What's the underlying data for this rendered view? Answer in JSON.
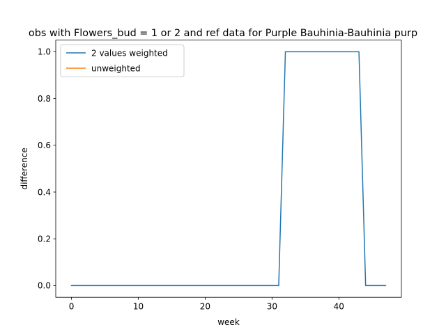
{
  "chart_data": {
    "type": "line",
    "title": "obs with Flowers_bud = 1 or 2 and ref data for Purple Bauhinia-Bauhinia purp",
    "xlabel": "week",
    "ylabel": "difference",
    "xlim": [
      -2.35,
      49.35
    ],
    "ylim": [
      -0.05,
      1.05
    ],
    "xticks": [
      0,
      10,
      20,
      30,
      40
    ],
    "yticks": [
      0.0,
      0.2,
      0.4,
      0.6,
      0.8,
      1.0
    ],
    "xtick_labels": [
      "0",
      "10",
      "20",
      "30",
      "40"
    ],
    "ytick_labels": [
      "0.0",
      "0.2",
      "0.4",
      "0.6",
      "0.8",
      "1.0"
    ],
    "grid": false,
    "legend_position": "top-left",
    "series": [
      {
        "name": "2 values weighted",
        "color": "#1f77b4",
        "x": [
          0,
          1,
          2,
          3,
          4,
          5,
          6,
          7,
          8,
          9,
          10,
          11,
          12,
          13,
          14,
          15,
          16,
          17,
          18,
          19,
          20,
          21,
          22,
          23,
          24,
          25,
          26,
          27,
          28,
          29,
          30,
          31,
          32,
          33,
          34,
          35,
          36,
          37,
          38,
          39,
          40,
          41,
          42,
          43,
          44,
          45,
          46,
          47
        ],
        "values": [
          0,
          0,
          0,
          0,
          0,
          0,
          0,
          0,
          0,
          0,
          0,
          0,
          0,
          0,
          0,
          0,
          0,
          0,
          0,
          0,
          0,
          0,
          0,
          0,
          0,
          0,
          0,
          0,
          0,
          0,
          0,
          0,
          1,
          1,
          1,
          1,
          1,
          1,
          1,
          1,
          1,
          1,
          1,
          1,
          0,
          0,
          0,
          0
        ]
      },
      {
        "name": "unweighted",
        "color": "#ff7f0e",
        "x": [],
        "values": []
      }
    ]
  }
}
